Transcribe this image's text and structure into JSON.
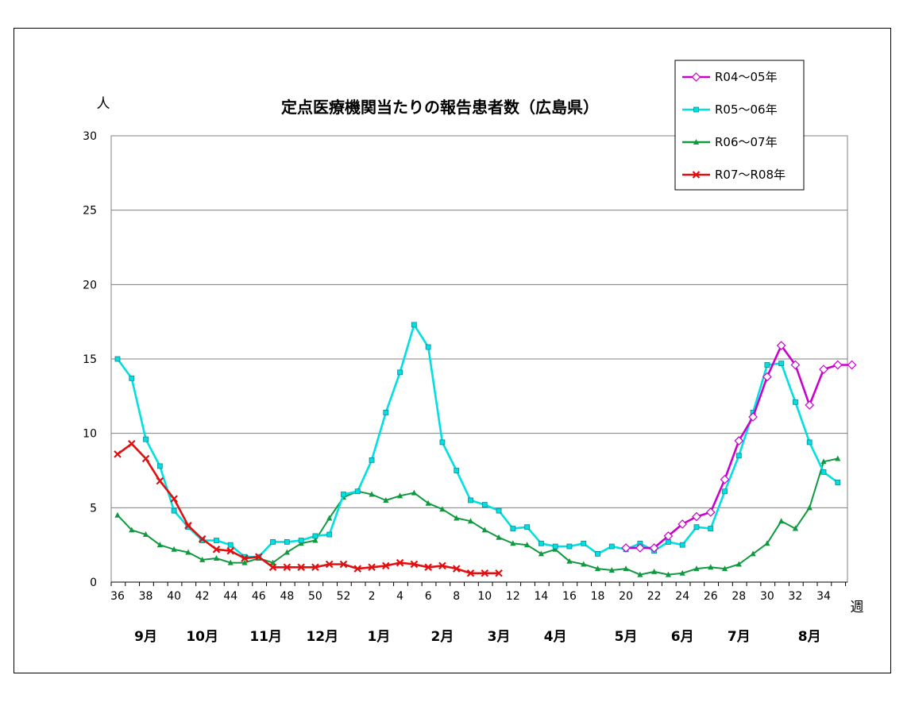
{
  "chart_data": {
    "type": "line",
    "title": "定点医療機関当たりの報告患者数（広島県）",
    "ylabel": "人",
    "xlabel": "週",
    "ylim": [
      0,
      30
    ],
    "yticks": [
      0,
      5,
      10,
      15,
      20,
      25,
      30
    ],
    "grid": true,
    "legend_position": "top-right",
    "x_tick_labels": [
      "36",
      "38",
      "40",
      "42",
      "44",
      "46",
      "48",
      "50",
      "52",
      "2",
      "4",
      "6",
      "8",
      "10",
      "12",
      "14",
      "16",
      "18",
      "20",
      "22",
      "24",
      "26",
      "28",
      "30",
      "32",
      "34"
    ],
    "months": [
      {
        "label": "9月",
        "center": 2
      },
      {
        "label": "10月",
        "center": 6
      },
      {
        "label": "11月",
        "center": 10.5
      },
      {
        "label": "12月",
        "center": 14.5
      },
      {
        "label": "1月",
        "center": 18.5
      },
      {
        "label": "2月",
        "center": 23
      },
      {
        "label": "3月",
        "center": 27
      },
      {
        "label": "4月",
        "center": 31
      },
      {
        "label": "5月",
        "center": 36
      },
      {
        "label": "6月",
        "center": 40
      },
      {
        "label": "7月",
        "center": 44
      },
      {
        "label": "8月",
        "center": 49
      }
    ],
    "series": [
      {
        "name": "R04～05年",
        "color": "#cc00cc",
        "marker": "diamond-open",
        "start": 36,
        "values": [
          2.3,
          2.3,
          2.3,
          3.1,
          3.9,
          4.4,
          4.7,
          6.9,
          9.5,
          11.1,
          13.8,
          15.9,
          14.6,
          11.9,
          14.3,
          14.6,
          14.6
        ]
      },
      {
        "name": "R05～06年",
        "color": "#00e0e0",
        "marker": "square",
        "start": 0,
        "values": [
          15.0,
          13.7,
          9.6,
          7.8,
          4.8,
          3.7,
          2.8,
          2.8,
          2.5,
          1.7,
          1.7,
          2.7,
          2.7,
          2.8,
          3.1,
          3.2,
          5.9,
          6.1,
          8.2,
          11.4,
          14.1,
          17.3,
          15.8,
          9.4,
          7.5,
          5.5,
          5.2,
          4.8,
          3.6,
          3.7,
          2.6,
          2.4,
          2.4,
          2.6,
          1.9,
          2.4,
          2.2,
          2.6,
          2.1,
          2.7,
          2.5,
          3.7,
          3.6,
          6.1,
          8.5,
          11.4,
          14.6,
          14.7,
          12.1,
          9.4,
          7.4,
          6.7
        ]
      },
      {
        "name": "R06～07年",
        "color": "#109a40",
        "marker": "triangle",
        "start": 0,
        "values": [
          4.5,
          3.5,
          3.2,
          2.5,
          2.2,
          2.0,
          1.5,
          1.6,
          1.3,
          1.3,
          1.6,
          1.3,
          2.0,
          2.6,
          2.8,
          4.3,
          5.7,
          6.1,
          5.9,
          5.5,
          5.8,
          6.0,
          5.3,
          4.9,
          4.3,
          4.1,
          3.5,
          3.0,
          2.6,
          2.5,
          1.9,
          2.2,
          1.4,
          1.2,
          0.9,
          0.8,
          0.9,
          0.5,
          0.7,
          0.5,
          0.6,
          0.9,
          1.0,
          0.9,
          1.2,
          1.9,
          2.6,
          4.1,
          3.6,
          5.0,
          8.1,
          8.3
        ]
      },
      {
        "name": "R07～R08年",
        "color": "#e01010",
        "marker": "cross",
        "start": 0,
        "values": [
          8.6,
          9.3,
          8.3,
          6.8,
          5.6,
          3.8,
          2.9,
          2.2,
          2.1,
          1.6,
          1.7,
          1.0,
          1.0,
          1.0,
          1.0,
          1.2,
          1.2,
          0.9,
          1.0,
          1.1,
          1.3,
          1.2,
          1.0,
          1.1,
          0.9,
          0.6,
          0.6,
          0.6
        ]
      }
    ]
  }
}
